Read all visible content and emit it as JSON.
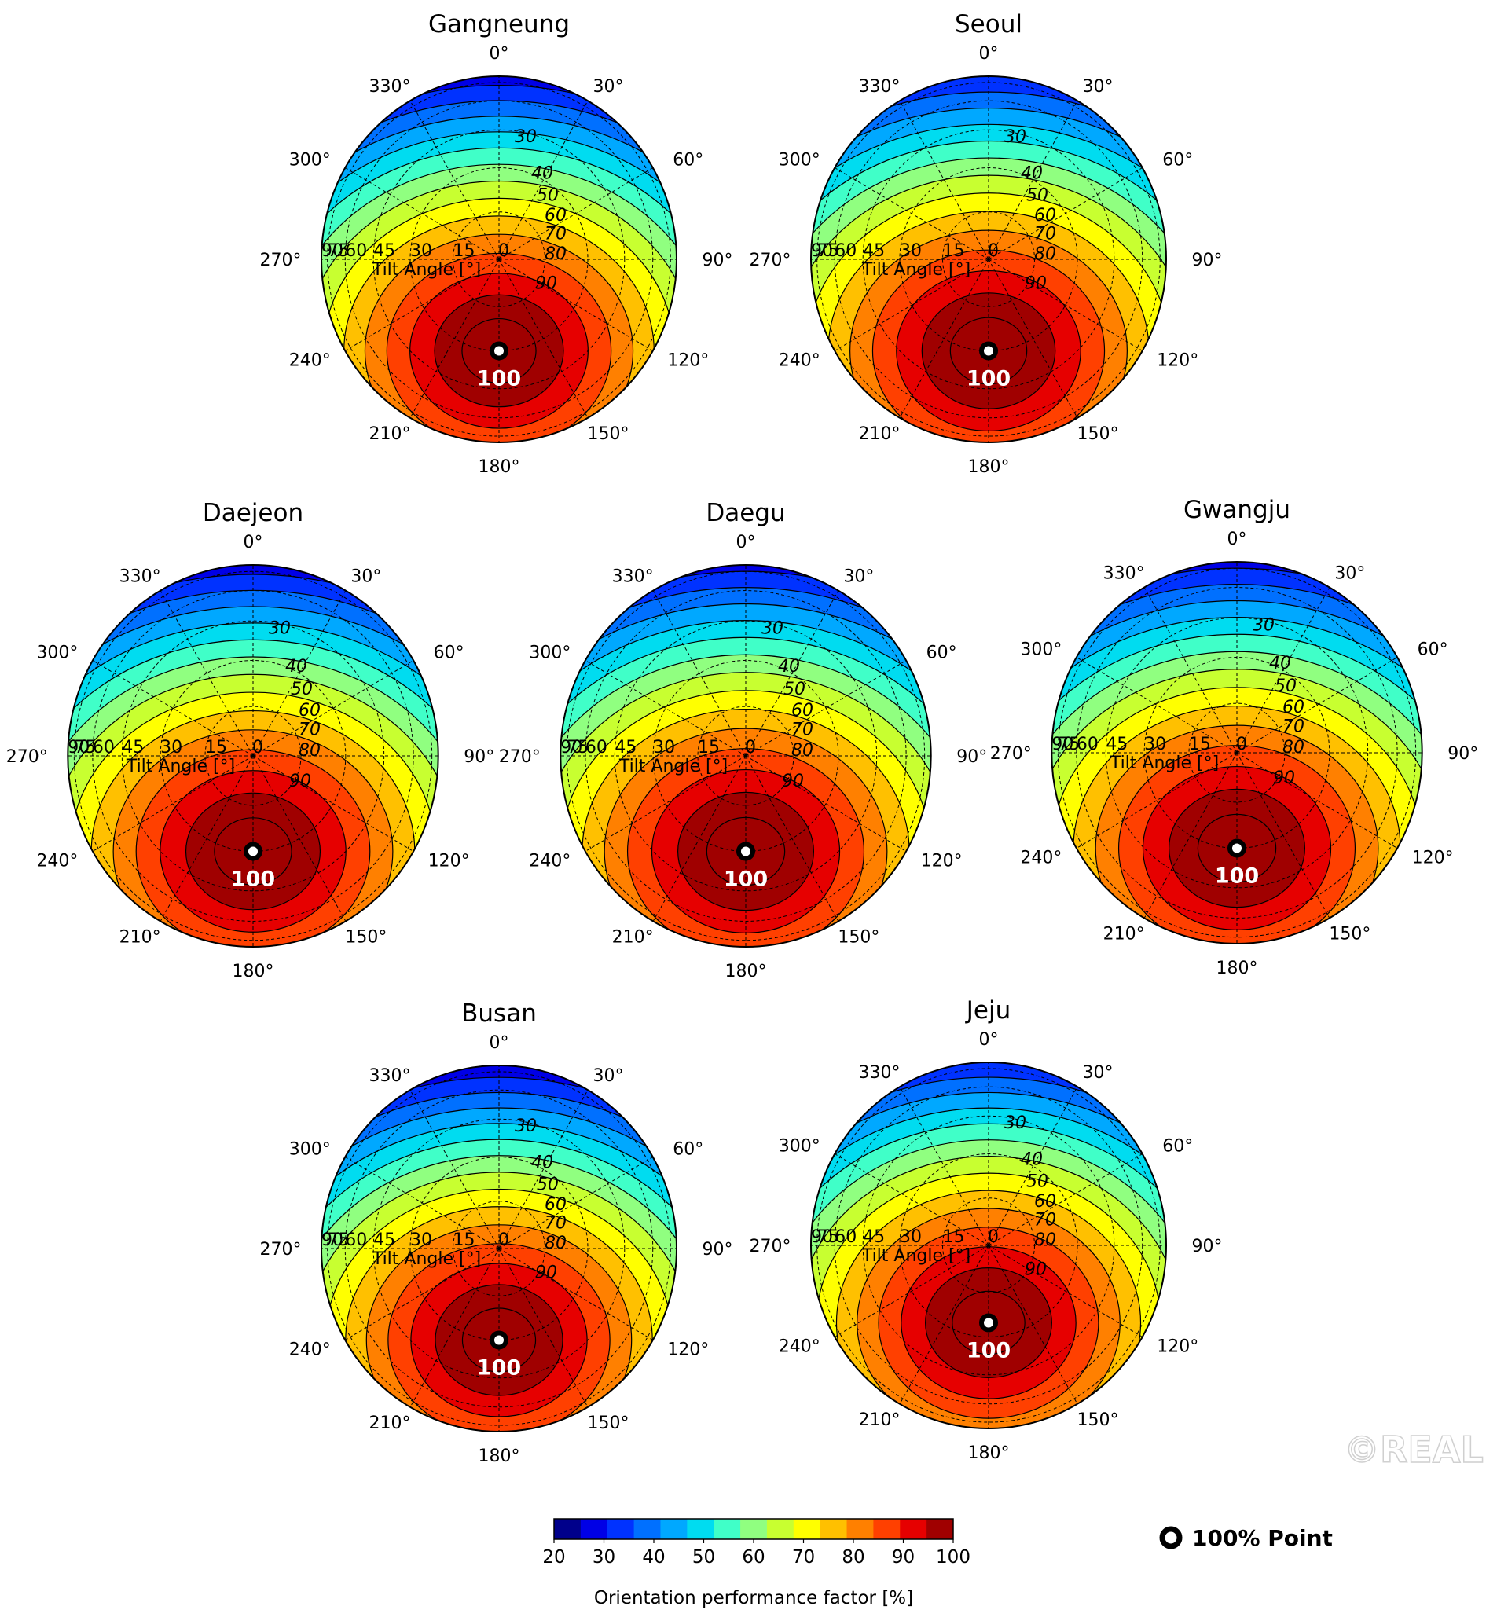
{
  "chart_data": {
    "type": "polar-contour",
    "azimuth_tick_labels": [
      "0°",
      "30°",
      "60°",
      "90°",
      "120°",
      "150°",
      "180°",
      "210°",
      "240°",
      "270°",
      "300°",
      "330°"
    ],
    "tilt_tick_labels": [
      "90",
      "75",
      "60",
      "45",
      "30",
      "15",
      "0"
    ],
    "tilt_axis_label": "Tilt Angle [°]",
    "contour_labels": [
      "30",
      "40",
      "50",
      "60",
      "70",
      "80",
      "90"
    ],
    "max_label": "100",
    "colorbar": {
      "label": "Orientation performance factor [%]",
      "ticks": [
        "20",
        "30",
        "40",
        "50",
        "60",
        "70",
        "80",
        "90",
        "100"
      ],
      "min": 20,
      "max": 100,
      "step": 5,
      "colors": [
        "#00008b",
        "#0000e6",
        "#0032ff",
        "#0070ff",
        "#00a8ff",
        "#00dcf0",
        "#40ffc8",
        "#90ff80",
        "#c8ff30",
        "#ffff00",
        "#ffc000",
        "#ff8000",
        "#ff4000",
        "#e60000",
        "#a00000"
      ]
    },
    "legend": {
      "label": "100% Point",
      "placement": "bottom-right"
    },
    "panels": [
      {
        "title": "Gangneung",
        "optimum_azimuth_deg": 180,
        "optimum_tilt_deg": 30,
        "min_value": 27
      },
      {
        "title": "Seoul",
        "optimum_azimuth_deg": 180,
        "optimum_tilt_deg": 30,
        "min_value": 30
      },
      {
        "title": "Daejeon",
        "optimum_azimuth_deg": 180,
        "optimum_tilt_deg": 30,
        "min_value": 27
      },
      {
        "title": "Daegu",
        "optimum_azimuth_deg": 180,
        "optimum_tilt_deg": 30,
        "min_value": 28
      },
      {
        "title": "Gwangju",
        "optimum_azimuth_deg": 180,
        "optimum_tilt_deg": 30,
        "min_value": 28
      },
      {
        "title": "Busan",
        "optimum_azimuth_deg": 180,
        "optimum_tilt_deg": 30,
        "min_value": 26
      },
      {
        "title": "Jeju",
        "optimum_azimuth_deg": 180,
        "optimum_tilt_deg": 25,
        "min_value": 30
      }
    ]
  },
  "watermark": "©REAL"
}
